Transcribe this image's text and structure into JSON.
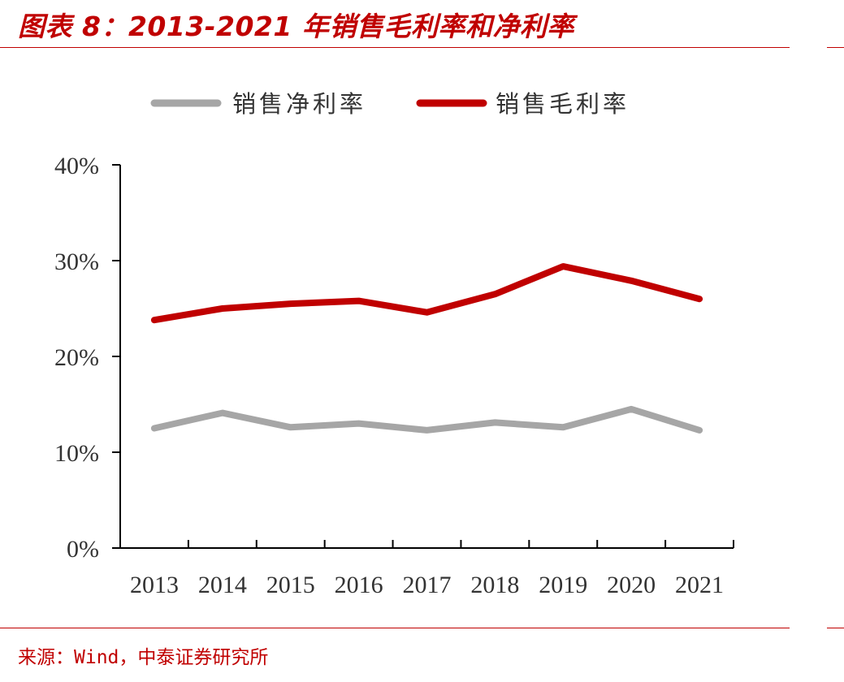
{
  "header": {
    "title": "图表 8：2013-2021 年销售毛利率和净利率"
  },
  "footer": {
    "source": "来源：Wind，中泰证券研究所"
  },
  "colors": {
    "accent": "#c00000",
    "net_margin": "#a6a6a6",
    "gross_margin": "#c00000"
  },
  "chart_data": {
    "type": "line",
    "title": "",
    "xlabel": "",
    "ylabel": "",
    "categories": [
      "2013",
      "2014",
      "2015",
      "2016",
      "2017",
      "2018",
      "2019",
      "2020",
      "2021"
    ],
    "ylim": [
      0,
      40
    ],
    "yticks": [
      0,
      10,
      20,
      30,
      40
    ],
    "ytick_labels": [
      "0%",
      "10%",
      "20%",
      "30%",
      "40%"
    ],
    "grid": false,
    "legend_position": "top",
    "series": [
      {
        "name": "销售净利率",
        "color": "#a6a6a6",
        "values": [
          12.5,
          14.1,
          12.6,
          13.0,
          12.3,
          13.1,
          12.6,
          14.5,
          12.3
        ]
      },
      {
        "name": "销售毛利率",
        "color": "#c00000",
        "values": [
          23.8,
          25.0,
          25.5,
          25.8,
          24.6,
          26.5,
          29.4,
          27.9,
          26.0
        ]
      }
    ]
  }
}
